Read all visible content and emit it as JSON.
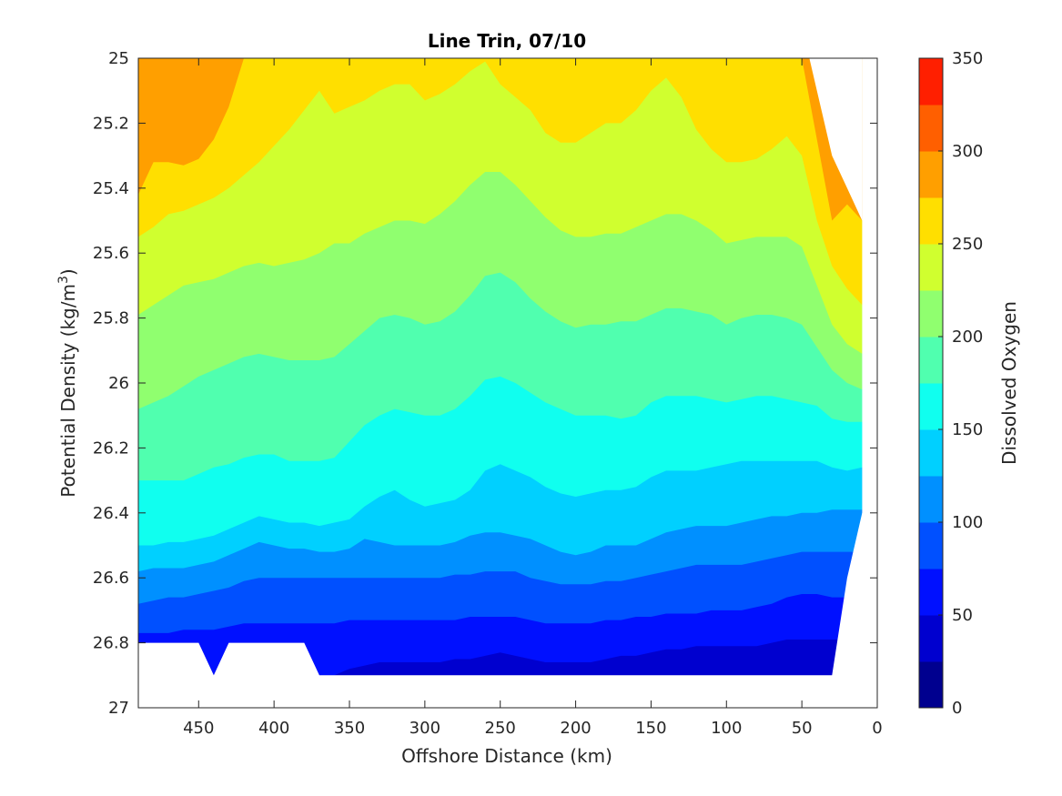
{
  "chart_data": {
    "type": "heatmap",
    "title": "Line Trin, 07/10",
    "xlabel": "Offshore Distance (km)",
    "ylabel": "Potential Density (kg/m",
    "ylabel_superscript": "3",
    "ylabel_suffix": ")",
    "colorbar_label": "Dissolved Oxygen",
    "xlim": [
      490,
      0
    ],
    "ylim": [
      25,
      27
    ],
    "x_reversed": true,
    "y_reversed": true,
    "x_ticks": [
      450,
      400,
      350,
      300,
      250,
      200,
      150,
      100,
      50,
      0
    ],
    "x_tick_labels": [
      "450",
      "400",
      "350",
      "300",
      "250",
      "200",
      "150",
      "100",
      "50",
      "0"
    ],
    "y_ticks": [
      25,
      25.2,
      25.4,
      25.6,
      25.8,
      26,
      26.2,
      26.4,
      26.6,
      26.8,
      27
    ],
    "y_tick_labels": [
      "25",
      "25.2",
      "25.4",
      "25.6",
      "25.8",
      "26",
      "26.2",
      "26.4",
      "26.6",
      "26.8",
      "27"
    ],
    "colorbar_ticks": [
      0,
      50,
      100,
      150,
      200,
      250,
      300,
      350
    ],
    "colorbar_tick_labels": [
      "0",
      "50",
      "100",
      "150",
      "200",
      "250",
      "300",
      "350"
    ],
    "colorbar_range": [
      0,
      350
    ],
    "levels": [
      0,
      25,
      50,
      75,
      100,
      125,
      150,
      175,
      200,
      225,
      250,
      275,
      300,
      325,
      350
    ],
    "level_colors": [
      "#00008f",
      "#0000cf",
      "#0010ff",
      "#0050ff",
      "#0090ff",
      "#00d0ff",
      "#10ffef",
      "#50ffaf",
      "#90ff6f",
      "#d0ff2f",
      "#ffdf00",
      "#ff9f00",
      "#ff5f00",
      "#ff1f00",
      "#cf0000"
    ],
    "distance_km": [
      490,
      480,
      470,
      460,
      450,
      440,
      430,
      420,
      410,
      400,
      390,
      380,
      370,
      360,
      350,
      340,
      330,
      320,
      310,
      300,
      290,
      280,
      270,
      260,
      250,
      240,
      230,
      220,
      210,
      200,
      190,
      180,
      170,
      160,
      150,
      140,
      130,
      120,
      110,
      100,
      90,
      80,
      70,
      60,
      50,
      40,
      30,
      20,
      10
    ],
    "isopycnal_depth_of_contours": [
      {
        "level": 50,
        "density": [
          26.8,
          26.8,
          26.8,
          26.8,
          26.8,
          26.9,
          26.8,
          26.8,
          26.8,
          26.8,
          26.8,
          26.8,
          26.9,
          26.9,
          26.88,
          26.87,
          26.86,
          26.86,
          26.86,
          26.86,
          26.86,
          26.85,
          26.85,
          26.84,
          26.83,
          26.84,
          26.85,
          26.86,
          26.86,
          26.86,
          26.86,
          26.85,
          26.84,
          26.84,
          26.83,
          26.82,
          26.82,
          26.81,
          26.81,
          26.81,
          26.81,
          26.81,
          26.8,
          26.79,
          26.79,
          26.79,
          26.79,
          26.79,
          26.79
        ]
      },
      {
        "level": 75,
        "density": [
          26.77,
          26.77,
          26.77,
          26.76,
          26.76,
          26.76,
          26.75,
          26.74,
          26.74,
          26.74,
          26.74,
          26.74,
          26.74,
          26.74,
          26.73,
          26.73,
          26.73,
          26.73,
          26.73,
          26.73,
          26.73,
          26.73,
          26.72,
          26.72,
          26.72,
          26.72,
          26.73,
          26.74,
          26.74,
          26.74,
          26.74,
          26.73,
          26.73,
          26.72,
          26.72,
          26.71,
          26.71,
          26.71,
          26.7,
          26.7,
          26.7,
          26.69,
          26.68,
          26.66,
          26.65,
          26.65,
          26.66,
          26.66,
          26.66
        ]
      },
      {
        "level": 100,
        "density": [
          26.68,
          26.67,
          26.66,
          26.66,
          26.65,
          26.64,
          26.63,
          26.61,
          26.6,
          26.6,
          26.6,
          26.6,
          26.6,
          26.6,
          26.6,
          26.6,
          26.6,
          26.6,
          26.6,
          26.6,
          26.6,
          26.59,
          26.59,
          26.58,
          26.58,
          26.58,
          26.6,
          26.61,
          26.62,
          26.62,
          26.62,
          26.61,
          26.61,
          26.6,
          26.59,
          26.58,
          26.57,
          26.56,
          26.56,
          26.56,
          26.56,
          26.55,
          26.54,
          26.53,
          26.52,
          26.52,
          26.52,
          26.52,
          26.52
        ]
      },
      {
        "level": 125,
        "density": [
          26.58,
          26.57,
          26.57,
          26.57,
          26.56,
          26.55,
          26.53,
          26.51,
          26.49,
          26.5,
          26.51,
          26.51,
          26.52,
          26.52,
          26.51,
          26.48,
          26.49,
          26.5,
          26.5,
          26.5,
          26.5,
          26.49,
          26.47,
          26.46,
          26.46,
          26.47,
          26.48,
          26.5,
          26.52,
          26.53,
          26.52,
          26.5,
          26.5,
          26.5,
          26.48,
          26.46,
          26.45,
          26.44,
          26.44,
          26.44,
          26.43,
          26.42,
          26.41,
          26.41,
          26.4,
          26.4,
          26.39,
          26.39,
          26.39
        ]
      },
      {
        "level": 150,
        "density": [
          26.5,
          26.5,
          26.49,
          26.49,
          26.48,
          26.47,
          26.45,
          26.43,
          26.41,
          26.42,
          26.43,
          26.43,
          26.44,
          26.43,
          26.42,
          26.38,
          26.35,
          26.33,
          26.36,
          26.38,
          26.37,
          26.36,
          26.33,
          26.27,
          26.25,
          26.27,
          26.29,
          26.32,
          26.34,
          26.35,
          26.34,
          26.33,
          26.33,
          26.32,
          26.29,
          26.27,
          26.27,
          26.27,
          26.26,
          26.25,
          26.24,
          26.24,
          26.24,
          26.24,
          26.24,
          26.24,
          26.26,
          26.27,
          26.26
        ]
      },
      {
        "level": 175,
        "density": [
          26.3,
          26.3,
          26.3,
          26.3,
          26.28,
          26.26,
          26.25,
          26.23,
          26.22,
          26.22,
          26.24,
          26.24,
          26.24,
          26.23,
          26.18,
          26.13,
          26.1,
          26.08,
          26.09,
          26.1,
          26.1,
          26.08,
          26.04,
          25.99,
          25.98,
          26.0,
          26.03,
          26.06,
          26.08,
          26.1,
          26.1,
          26.1,
          26.11,
          26.1,
          26.06,
          26.04,
          26.04,
          26.04,
          26.05,
          26.06,
          26.05,
          26.04,
          26.04,
          26.05,
          26.06,
          26.07,
          26.11,
          26.12,
          26.12
        ]
      },
      {
        "level": 200,
        "density": [
          26.08,
          26.06,
          26.04,
          26.01,
          25.98,
          25.96,
          25.94,
          25.92,
          25.91,
          25.92,
          25.93,
          25.93,
          25.93,
          25.92,
          25.88,
          25.84,
          25.8,
          25.79,
          25.8,
          25.82,
          25.81,
          25.78,
          25.73,
          25.67,
          25.66,
          25.69,
          25.74,
          25.78,
          25.81,
          25.83,
          25.82,
          25.82,
          25.81,
          25.81,
          25.79,
          25.77,
          25.77,
          25.78,
          25.79,
          25.82,
          25.8,
          25.79,
          25.79,
          25.8,
          25.82,
          25.89,
          25.96,
          26.0,
          26.02
        ]
      },
      {
        "level": 225,
        "density": [
          25.79,
          25.76,
          25.73,
          25.7,
          25.69,
          25.68,
          25.66,
          25.64,
          25.63,
          25.64,
          25.63,
          25.62,
          25.6,
          25.57,
          25.57,
          25.54,
          25.52,
          25.5,
          25.5,
          25.51,
          25.48,
          25.44,
          25.39,
          25.35,
          25.35,
          25.39,
          25.44,
          25.49,
          25.53,
          25.55,
          25.55,
          25.54,
          25.54,
          25.52,
          25.5,
          25.48,
          25.48,
          25.5,
          25.53,
          25.57,
          25.56,
          25.55,
          25.55,
          25.55,
          25.58,
          25.7,
          25.82,
          25.88,
          25.91
        ]
      },
      {
        "level": 250,
        "density": [
          25.55,
          25.52,
          25.48,
          25.47,
          25.45,
          25.43,
          25.4,
          25.36,
          25.32,
          25.27,
          25.22,
          25.16,
          25.1,
          25.17,
          25.15,
          25.13,
          25.1,
          25.08,
          25.08,
          25.13,
          25.11,
          25.08,
          25.04,
          25.01,
          25.08,
          25.12,
          25.16,
          25.23,
          25.26,
          25.26,
          25.23,
          25.2,
          25.2,
          25.16,
          25.1,
          25.06,
          25.12,
          25.22,
          25.28,
          25.32,
          25.32,
          25.31,
          25.28,
          25.24,
          25.3,
          25.5,
          25.64,
          25.71,
          25.76
        ]
      },
      {
        "level": 275,
        "density": [
          25.42,
          25.32,
          25.32,
          25.33,
          25.31,
          25.25,
          25.15,
          25.0,
          25.0,
          25.0,
          25.0,
          25.0,
          25.0,
          25.0,
          25.0,
          25.0,
          25.0,
          25.0,
          25.0,
          25.0,
          25.0,
          25.0,
          25.0,
          25.0,
          25.0,
          25.0,
          25.0,
          25.0,
          25.0,
          25.0,
          25.0,
          25.0,
          25.0,
          25.0,
          25.0,
          25.0,
          25.0,
          25.0,
          25.0,
          25.0,
          25.0,
          25.0,
          25.0,
          25.0,
          25.0,
          25.25,
          25.5,
          25.45,
          25.5
        ]
      }
    ],
    "data_mask_bottom": [
      26.8,
      26.8,
      26.8,
      26.8,
      26.8,
      26.9,
      26.8,
      26.8,
      26.8,
      26.8,
      26.8,
      26.8,
      26.9,
      26.9,
      26.9,
      26.9,
      26.9,
      26.9,
      26.9,
      26.9,
      26.9,
      26.9,
      26.9,
      26.9,
      26.9,
      26.9,
      26.9,
      26.9,
      26.9,
      26.9,
      26.9,
      26.9,
      26.9,
      26.9,
      26.9,
      26.9,
      26.9,
      26.9,
      26.9,
      26.9,
      26.9,
      26.9,
      26.9,
      26.9,
      26.9,
      26.9,
      26.9,
      26.6,
      26.4
    ],
    "data_mask_top_nearshore": [
      {
        "distance_km": 45,
        "density": 25.0
      },
      {
        "distance_km": 40,
        "density": 25.1
      },
      {
        "distance_km": 30,
        "density": 25.3
      },
      {
        "distance_km": 20,
        "density": 25.4
      },
      {
        "distance_km": 10,
        "density": 25.5
      }
    ]
  }
}
